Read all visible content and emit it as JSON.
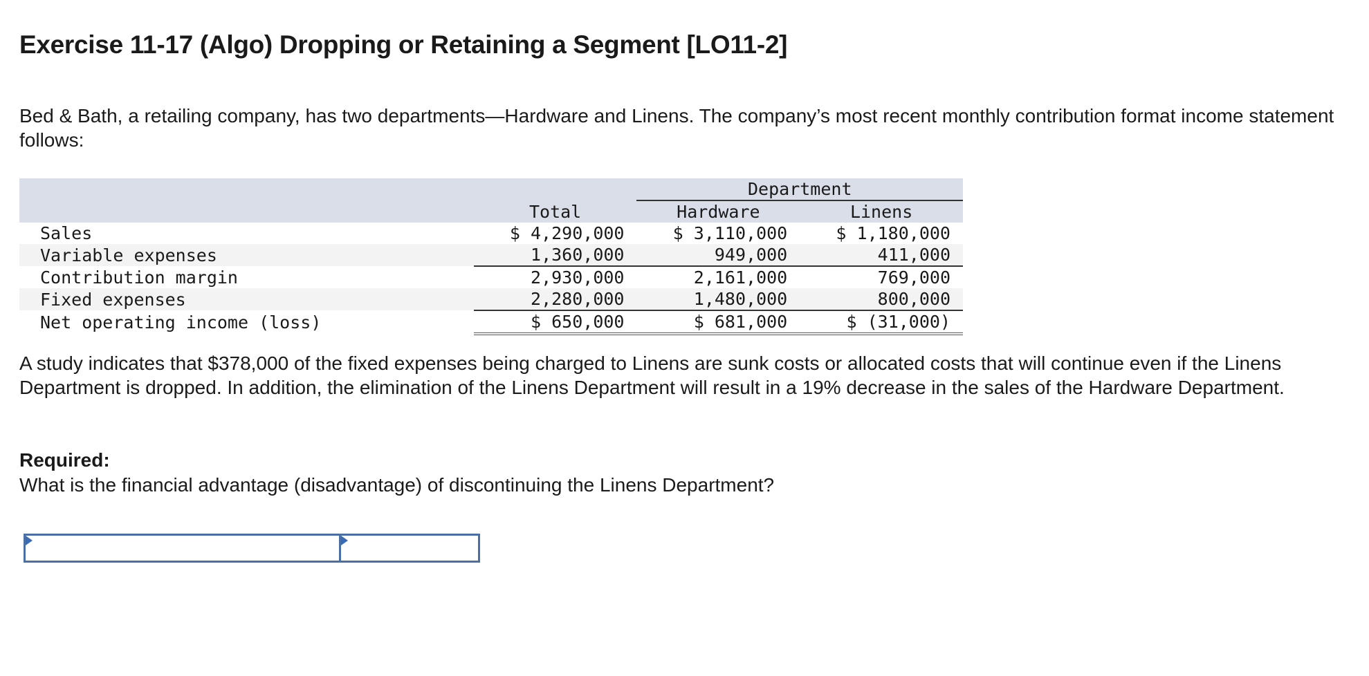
{
  "title": "Exercise 11-17 (Algo) Dropping or Retaining a Segment [LO11-2]",
  "intro": "Bed & Bath, a retailing company, has two departments—Hardware and Linens. The company’s most recent monthly contribution format income statement follows:",
  "table": {
    "group_header": "Department",
    "columns": [
      "Total",
      "Hardware",
      "Linens"
    ],
    "rows": [
      {
        "label": "Sales",
        "total": "$ 4,290,000",
        "hardware": "$ 3,110,000",
        "linens": "$ 1,180,000"
      },
      {
        "label": "Variable expenses",
        "total": "1,360,000",
        "hardware": "949,000",
        "linens": "411,000"
      },
      {
        "label": "Contribution margin",
        "total": "2,930,000",
        "hardware": "2,161,000",
        "linens": "769,000"
      },
      {
        "label": "Fixed expenses",
        "total": "2,280,000",
        "hardware": "1,480,000",
        "linens": "800,000"
      },
      {
        "label": "Net operating income (loss)",
        "total": "$ 650,000",
        "hardware": "$ 681,000",
        "linens": "$ (31,000)"
      }
    ]
  },
  "study": "A study indicates that $378,000 of the fixed expenses being charged to Linens are sunk costs or allocated costs that will continue even if the Linens Department is dropped. In addition, the elimination of the Linens Department will result in a 19% decrease in the sales of the Hardware Department.",
  "required_label": "Required:",
  "question": "What is the financial advantage (disadvantage) of discontinuing the Linens Department?",
  "answer": {
    "label_value": "",
    "amount_value": ""
  }
}
